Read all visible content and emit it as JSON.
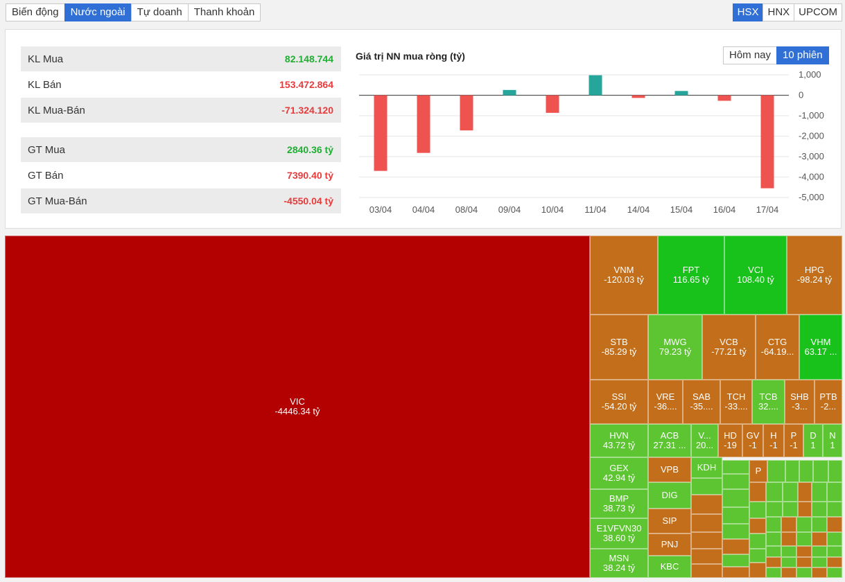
{
  "tabs": [
    {
      "label": "Biến động"
    },
    {
      "label": "Nước ngoài"
    },
    {
      "label": "Tự doanh"
    },
    {
      "label": "Thanh khoản"
    }
  ],
  "exchanges": [
    {
      "label": "HSX"
    },
    {
      "label": "HNX"
    },
    {
      "label": "UPCOM"
    }
  ],
  "stats": [
    {
      "label": "KL Mua",
      "value": "82.148.744",
      "color": "green"
    },
    {
      "label": "KL Bán",
      "value": "153.472.864",
      "color": "red"
    },
    {
      "label": "KL Mua-Bán",
      "value": "-71.324.120",
      "color": "red"
    },
    {
      "label": "GT Mua",
      "value": "2840.36 tỷ",
      "color": "green"
    },
    {
      "label": "GT Bán",
      "value": "7390.40 tỷ",
      "color": "red"
    },
    {
      "label": "GT Mua-Bán",
      "value": "-4550.04 tỷ",
      "color": "red"
    }
  ],
  "chart": {
    "title": "Giá trị NN mua ròng (tỷ)",
    "range_today": "Hôm nay",
    "range_10": "10 phiên"
  },
  "chart_data": {
    "type": "bar",
    "categories": [
      "03/04",
      "04/04",
      "08/04",
      "09/04",
      "10/04",
      "11/04",
      "14/04",
      "15/04",
      "16/04",
      "17/04"
    ],
    "values": [
      -3700,
      -2820,
      -1720,
      260,
      -860,
      980,
      -130,
      210,
      -270,
      -4550
    ],
    "ylim": [
      -5000,
      1000
    ],
    "yticks": [
      "1,000",
      "0",
      "-1,000",
      "-2,000",
      "-3,000",
      "-4,000",
      "-5,000"
    ],
    "positive_color": "#26a69a",
    "negative_color": "#ef5350"
  },
  "colors": {
    "red_dark": "#b30000",
    "orange": "#c26e1a",
    "green_bright": "#19c21a",
    "green_mid": "#5cc531",
    "green_light": "#6fd13d"
  },
  "treemap": {
    "labeled": [
      {
        "tk": "VIC",
        "val": "-4446.34 tỷ"
      },
      {
        "tk": "VNM",
        "val": "-120.03 tỷ"
      },
      {
        "tk": "FPT",
        "val": "116.65 tỷ"
      },
      {
        "tk": "VCI",
        "val": "108.40 tỷ"
      },
      {
        "tk": "HPG",
        "val": "-98.24 tỷ"
      },
      {
        "tk": "STB",
        "val": "-85.29 tỷ"
      },
      {
        "tk": "MWG",
        "val": "79.23 tỷ"
      },
      {
        "tk": "VCB",
        "val": "-77.21 tỷ"
      },
      {
        "tk": "CTG",
        "val": "-64.19..."
      },
      {
        "tk": "VHM",
        "val": "63.17 ..."
      },
      {
        "tk": "SSI",
        "val": "-54.20 tỷ"
      },
      {
        "tk": "VRE",
        "val": "-36...."
      },
      {
        "tk": "SAB",
        "val": "-35...."
      },
      {
        "tk": "TCH",
        "val": "-33...."
      },
      {
        "tk": "TCB",
        "val": "32...."
      },
      {
        "tk": "SHB",
        "val": "-3..."
      },
      {
        "tk": "PTB",
        "val": "-2..."
      },
      {
        "tk": "HVN",
        "val": "43.72 tỷ"
      },
      {
        "tk": "ACB",
        "val": "27.31 ..."
      },
      {
        "tk": "V...",
        "val": "20..."
      },
      {
        "tk": "HD",
        "val": "-19"
      },
      {
        "tk": "GV",
        "val": "-1"
      },
      {
        "tk": "H",
        "val": "-1"
      },
      {
        "tk": "P",
        "val": "-1"
      },
      {
        "tk": "D",
        "val": "1"
      },
      {
        "tk": "N",
        "val": "1"
      },
      {
        "tk": "GEX",
        "val": "42.94 tỷ"
      },
      {
        "tk": "VPB",
        "val": ""
      },
      {
        "tk": "KDH",
        "val": ""
      },
      {
        "tk": "P",
        "val": ""
      },
      {
        "tk": "DIG",
        "val": ""
      },
      {
        "tk": "BMP",
        "val": "38.73 tỷ"
      },
      {
        "tk": "SIP",
        "val": ""
      },
      {
        "tk": "E1VFVN30",
        "val": "38.60 tỷ"
      },
      {
        "tk": "PNJ",
        "val": ""
      },
      {
        "tk": "MSN",
        "val": "38.24 tỷ"
      },
      {
        "tk": "KBC",
        "val": ""
      }
    ]
  }
}
